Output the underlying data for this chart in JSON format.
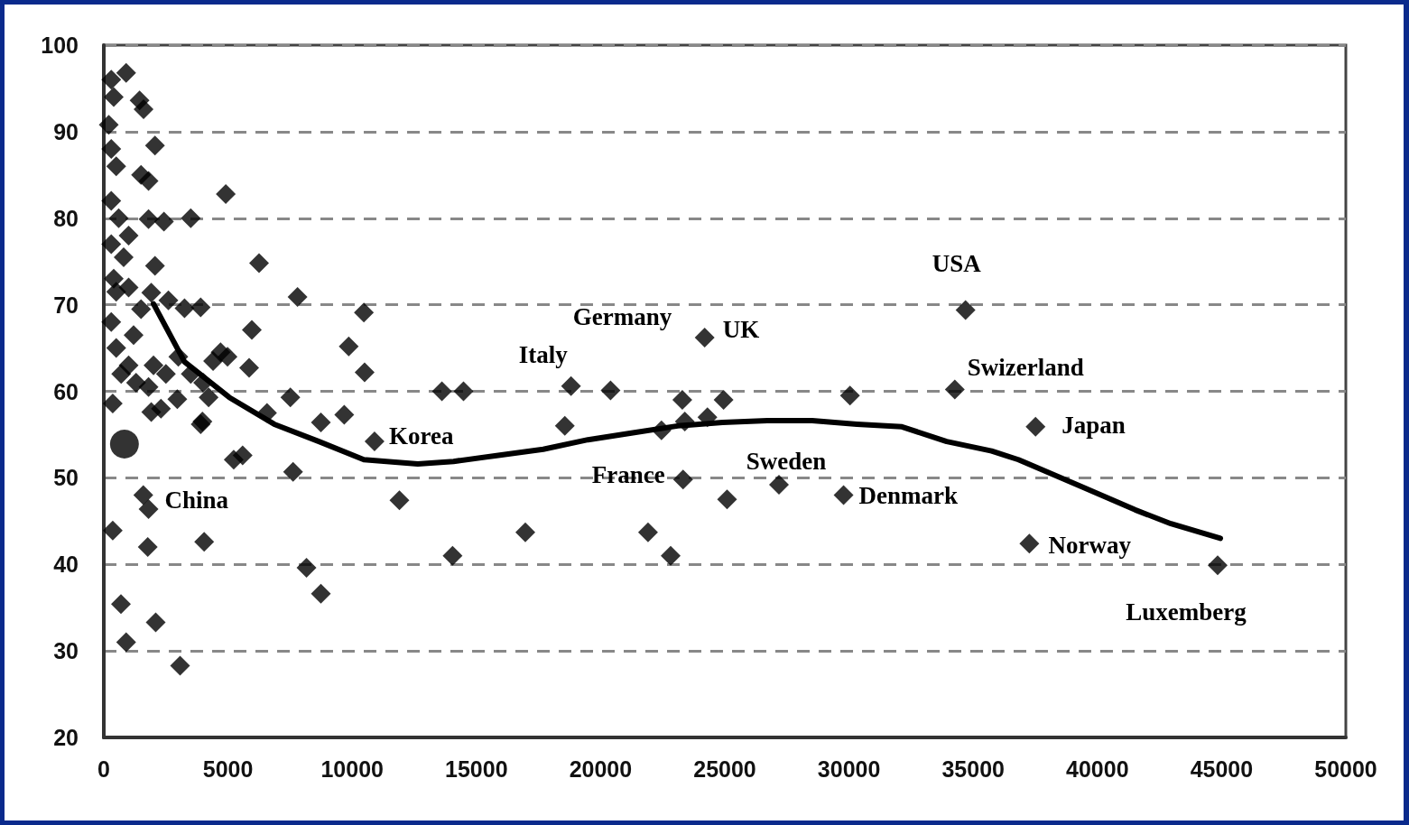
{
  "chart_data": {
    "type": "scatter",
    "xlim": [
      0,
      50000
    ],
    "xticks": [
      0,
      5000,
      10000,
      15000,
      20000,
      25000,
      30000,
      35000,
      40000,
      45000,
      50000
    ],
    "ylim": [
      20,
      100
    ],
    "yticks": [
      20,
      30,
      40,
      50,
      60,
      70,
      80,
      90,
      100
    ],
    "grid": "y",
    "marker": "diamond",
    "series": [
      {
        "color": "#000000",
        "x": [
          300,
          900,
          400,
          1440,
          1600,
          200,
          300,
          500,
          2060,
          1500,
          1800,
          300,
          600,
          1000,
          3500,
          2420,
          1800,
          300,
          800,
          2060,
          400,
          500,
          1000,
          1910,
          2600,
          1500,
          300,
          3250,
          3900,
          4910,
          6250,
          5960,
          7800,
          10470,
          9860,
          10500,
          5850,
          4980,
          2960,
          6570,
          9680,
          8740,
          3900,
          10900,
          5230,
          5590,
          7620,
          11900,
          4040,
          1770,
          360,
          1590,
          1800,
          690,
          900,
          2090,
          3070,
          8160,
          8740,
          360,
          1910,
          4220,
          3970,
          7510,
          500,
          1000,
          1300,
          2000,
          2500,
          3000,
          3500,
          4000,
          4400,
          4700,
          1200,
          700,
          1800,
          2300,
          13610,
          14480,
          18810,
          20400,
          18560,
          23290,
          24950,
          30040,
          24190,
          22450,
          23390,
          24300,
          16970,
          14040,
          21910,
          22820,
          23320,
          25090,
          27180,
          29780,
          34690,
          34260,
          37510,
          37260,
          44840
        ],
        "values": [
          96,
          96.8,
          94,
          93.6,
          92.6,
          90.8,
          88,
          86,
          88.4,
          85,
          84.3,
          82,
          80,
          78,
          80,
          79.6,
          79.9,
          77,
          75.5,
          74.5,
          73,
          71.5,
          72,
          71.4,
          70.5,
          69.5,
          68,
          69.6,
          69.7,
          82.8,
          74.8,
          67.1,
          70.9,
          69.1,
          65.2,
          62.2,
          62.7,
          64,
          59.1,
          57.5,
          57.3,
          56.4,
          56.2,
          54.2,
          52.1,
          52.6,
          50.7,
          47.4,
          42.6,
          42,
          43.9,
          48,
          46.4,
          35.4,
          31,
          33.3,
          28.3,
          39.6,
          36.6,
          58.6,
          57.6,
          59.3,
          56.5,
          59.3,
          65,
          63,
          61,
          63,
          62,
          64,
          62,
          61,
          63.5,
          64.5,
          66.5,
          62,
          60.5,
          58,
          60,
          60,
          60.6,
          60.1,
          56,
          59,
          59,
          59.5,
          66.2,
          55.5,
          56.5,
          57,
          43.7,
          41,
          43.7,
          41,
          49.8,
          47.5,
          49.2,
          48,
          69.4,
          60.2,
          55.9,
          42.4,
          39.9
        ]
      },
      {
        "color": "#000000",
        "marker": "circle",
        "x": [
          830
        ],
        "values": [
          53.9
        ]
      },
      {
        "type": "line",
        "color": "#000000",
        "marker": "none",
        "line_style": "solid",
        "x": [
          2000,
          3250,
          5050,
          6860,
          8660,
          10470,
          12640,
          14080,
          15880,
          17690,
          19490,
          21300,
          23100,
          24910,
          26710,
          28520,
          30320,
          32130,
          33930,
          35740,
          36820,
          39350,
          41520,
          42960,
          44950
        ],
        "values": [
          70.1,
          63.4,
          59.3,
          56.2,
          54.2,
          52.1,
          51.6,
          51.9,
          52.6,
          53.3,
          54.4,
          55.2,
          56,
          56.4,
          56.6,
          56.6,
          56.2,
          55.9,
          54.2,
          53.1,
          52.1,
          49,
          46.3,
          44.7,
          43
        ]
      }
    ],
    "annotations": [
      {
        "text": "China",
        "x": 1800,
        "y": 46.4
      },
      {
        "text": "Korea",
        "x": 10900,
        "y": 54.2
      },
      {
        "text": "Italy",
        "x": 18810,
        "y": 60.6
      },
      {
        "text": "Germany",
        "x": 20400,
        "y": 60.1
      },
      {
        "text": "UK",
        "x": 24190,
        "y": 66.2
      },
      {
        "text": "France",
        "x": 23320,
        "y": 49.8
      },
      {
        "text": "Sweden",
        "x": 27180,
        "y": 49.2
      },
      {
        "text": "Denmark",
        "x": 29780,
        "y": 48
      },
      {
        "text": "USA",
        "x": 34690,
        "y": 69.4
      },
      {
        "text": "Swizerland",
        "x": 34260,
        "y": 60.2
      },
      {
        "text": "Japan",
        "x": 37510,
        "y": 55.9
      },
      {
        "text": "Norway",
        "x": 37260,
        "y": 42.4
      },
      {
        "text": "Luxemberg",
        "x": 44840,
        "y": 39.9
      }
    ]
  }
}
